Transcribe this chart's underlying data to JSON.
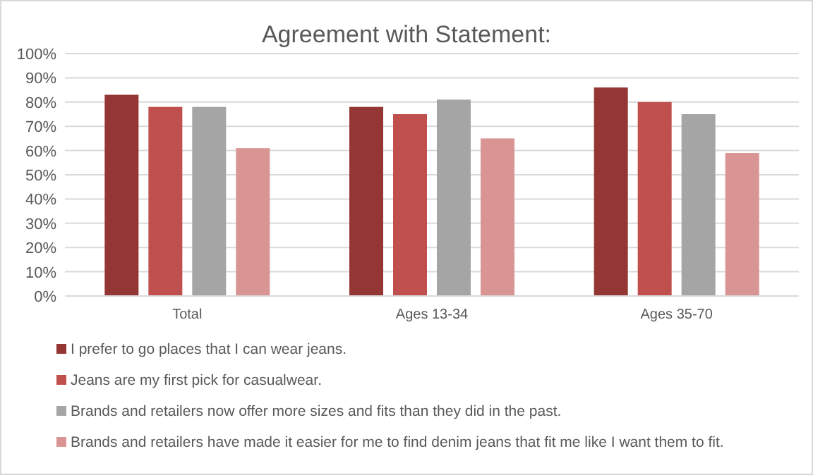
{
  "chart_data": {
    "type": "bar",
    "title": "Agreement with Statement:",
    "categories": [
      "Total",
      "Ages 13-34",
      "Ages 35-70"
    ],
    "series": [
      {
        "name": "I prefer to go places that I can wear jeans.",
        "color": "#943634",
        "values": [
          0.83,
          0.78,
          0.86
        ]
      },
      {
        "name": "Jeans are my first pick for casualwear.",
        "color": "#c0504d",
        "values": [
          0.78,
          0.75,
          0.8
        ]
      },
      {
        "name": "Brands and retailers now offer more sizes and fits than they did in the past.",
        "color": "#a5a5a5",
        "values": [
          0.78,
          0.81,
          0.75
        ]
      },
      {
        "name": "Brands and retailers have made it easier for me to find denim jeans that fit me like I want them to fit.",
        "color": "#d99594",
        "values": [
          0.61,
          0.65,
          0.59
        ]
      }
    ],
    "ylim": [
      0,
      1
    ],
    "yticks": [
      {
        "value": 0,
        "label": "0%"
      },
      {
        "value": 0.1,
        "label": "10%"
      },
      {
        "value": 0.2,
        "label": "20%"
      },
      {
        "value": 0.3,
        "label": "30%"
      },
      {
        "value": 0.4,
        "label": "40%"
      },
      {
        "value": 0.5,
        "label": "50%"
      },
      {
        "value": 0.6,
        "label": "60%"
      },
      {
        "value": 0.7,
        "label": "70%"
      },
      {
        "value": 0.8,
        "label": "80%"
      },
      {
        "value": 0.9,
        "label": "90%"
      },
      {
        "value": 1,
        "label": "100%"
      }
    ],
    "grid": "y",
    "legend": "bottom"
  }
}
